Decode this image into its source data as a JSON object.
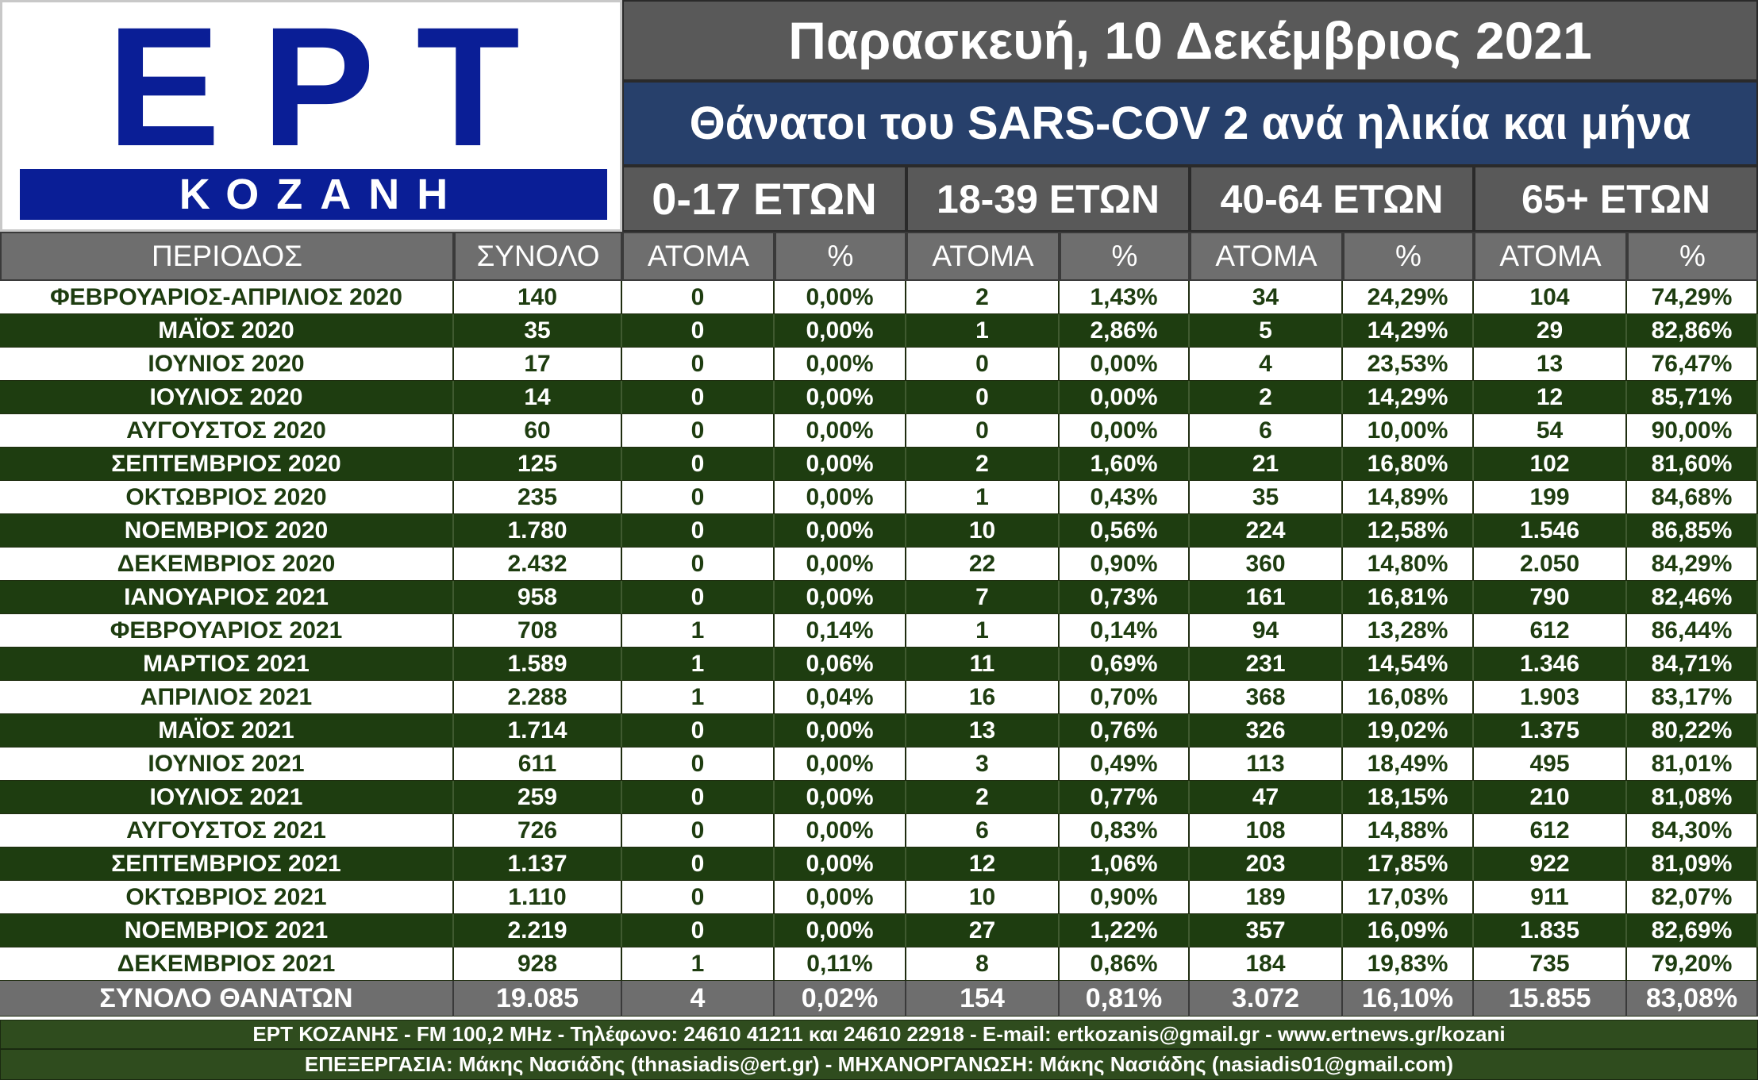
{
  "logo": {
    "top_text": "EPT",
    "bar_text": "ΚΟΖΑΝΗ"
  },
  "header": {
    "date": "Παρασκευή, 10 Δεκέμβριος 2021",
    "subtitle": "Θάνατοι του SARS-COV 2 ανά ηλικία και μήνα"
  },
  "age_groups": [
    "0-17 ΕΤΩΝ",
    "18-39 ΕΤΩΝ",
    "40-64 ΕΤΩΝ",
    "65+  ΕΤΩΝ"
  ],
  "columns": [
    "ΠΕΡΙΟΔΟΣ",
    "ΣΥΝΟΛΟ",
    "ΑΤΟΜΑ",
    "%",
    "ΑΤΟΜΑ",
    "%",
    "ΑΤΟΜΑ",
    "%",
    "ΑΤΟΜΑ",
    "%"
  ],
  "colors": {
    "dark_green": "#1e3d10",
    "grey": "#6e6e6e",
    "navy": "#0a1e96",
    "subtitle_blue": "#27406b"
  },
  "chart_data": {
    "type": "table",
    "title": "Θάνατοι του SARS-COV 2 ανά ηλικία και μήνα",
    "rows": [
      [
        "ΦΕΒΡΟΥΑΡΙΟΣ-ΑΠΡΙΛΙΟΣ 2020",
        "140",
        "0",
        "0,00%",
        "2",
        "1,43%",
        "34",
        "24,29%",
        "104",
        "74,29%"
      ],
      [
        "ΜΑΪΟΣ 2020",
        "35",
        "0",
        "0,00%",
        "1",
        "2,86%",
        "5",
        "14,29%",
        "29",
        "82,86%"
      ],
      [
        "ΙΟΥΝΙΟΣ 2020",
        "17",
        "0",
        "0,00%",
        "0",
        "0,00%",
        "4",
        "23,53%",
        "13",
        "76,47%"
      ],
      [
        "ΙΟΥΛΙΟΣ 2020",
        "14",
        "0",
        "0,00%",
        "0",
        "0,00%",
        "2",
        "14,29%",
        "12",
        "85,71%"
      ],
      [
        "ΑΥΓΟΥΣΤΟΣ 2020",
        "60",
        "0",
        "0,00%",
        "0",
        "0,00%",
        "6",
        "10,00%",
        "54",
        "90,00%"
      ],
      [
        "ΣΕΠΤΕΜΒΡΙΟΣ 2020",
        "125",
        "0",
        "0,00%",
        "2",
        "1,60%",
        "21",
        "16,80%",
        "102",
        "81,60%"
      ],
      [
        "ΟΚΤΩΒΡΙΟΣ 2020",
        "235",
        "0",
        "0,00%",
        "1",
        "0,43%",
        "35",
        "14,89%",
        "199",
        "84,68%"
      ],
      [
        "ΝΟΕΜΒΡΙΟΣ 2020",
        "1.780",
        "0",
        "0,00%",
        "10",
        "0,56%",
        "224",
        "12,58%",
        "1.546",
        "86,85%"
      ],
      [
        "ΔΕΚΕΜΒΡΙΟΣ 2020",
        "2.432",
        "0",
        "0,00%",
        "22",
        "0,90%",
        "360",
        "14,80%",
        "2.050",
        "84,29%"
      ],
      [
        "ΙΑΝΟΥΑΡΙΟΣ 2021",
        "958",
        "0",
        "0,00%",
        "7",
        "0,73%",
        "161",
        "16,81%",
        "790",
        "82,46%"
      ],
      [
        "ΦΕΒΡΟΥΑΡΙΟΣ 2021",
        "708",
        "1",
        "0,14%",
        "1",
        "0,14%",
        "94",
        "13,28%",
        "612",
        "86,44%"
      ],
      [
        "ΜΑΡΤΙΟΣ 2021",
        "1.589",
        "1",
        "0,06%",
        "11",
        "0,69%",
        "231",
        "14,54%",
        "1.346",
        "84,71%"
      ],
      [
        "ΑΠΡΙΛΙΟΣ 2021",
        "2.288",
        "1",
        "0,04%",
        "16",
        "0,70%",
        "368",
        "16,08%",
        "1.903",
        "83,17%"
      ],
      [
        "ΜΑΪΟΣ 2021",
        "1.714",
        "0",
        "0,00%",
        "13",
        "0,76%",
        "326",
        "19,02%",
        "1.375",
        "80,22%"
      ],
      [
        "ΙΟΥΝΙΟΣ 2021",
        "611",
        "0",
        "0,00%",
        "3",
        "0,49%",
        "113",
        "18,49%",
        "495",
        "81,01%"
      ],
      [
        "ΙΟΥΛΙΟΣ 2021",
        "259",
        "0",
        "0,00%",
        "2",
        "0,77%",
        "47",
        "18,15%",
        "210",
        "81,08%"
      ],
      [
        "ΑΥΓΟΥΣΤΟΣ 2021",
        "726",
        "0",
        "0,00%",
        "6",
        "0,83%",
        "108",
        "14,88%",
        "612",
        "84,30%"
      ],
      [
        "ΣΕΠΤΕΜΒΡΙΟΣ 2021",
        "1.137",
        "0",
        "0,00%",
        "12",
        "1,06%",
        "203",
        "17,85%",
        "922",
        "81,09%"
      ],
      [
        "ΟΚΤΩΒΡΙΟΣ 2021",
        "1.110",
        "0",
        "0,00%",
        "10",
        "0,90%",
        "189",
        "17,03%",
        "911",
        "82,07%"
      ],
      [
        "ΝΟΕΜΒΡΙΟΣ 2021",
        "2.219",
        "0",
        "0,00%",
        "27",
        "1,22%",
        "357",
        "16,09%",
        "1.835",
        "82,69%"
      ],
      [
        "ΔΕΚΕΜΒΡΙΟΣ 2021",
        "928",
        "1",
        "0,11%",
        "8",
        "0,86%",
        "184",
        "19,83%",
        "735",
        "79,20%"
      ]
    ],
    "total_row": [
      "ΣΥΝΟΛΟ ΘΑΝΑΤΩΝ",
      "19.085",
      "4",
      "0,02%",
      "154",
      "0,81%",
      "3.072",
      "16,10%",
      "15.855",
      "83,08%"
    ]
  },
  "footer": {
    "line1": "ΕΡΤ ΚΟΖΑΝΗΣ - FM 100,2 MHz - Τηλέφωνο:  24610 41211 και 24610 22918 - E-mail: ertkozanis@gmail.gr - www.ertnews.gr/kozani",
    "line2": "ΕΠΕΞΕΡΓΑΣΙΑ: Μάκης Νασιάδης (thnasiadis@ert.gr) - ΜΗΧΑΝΟΡΓΑΝΩΣΗ: Μάκης Νασιάδης (nasiadis01@gmail.com)"
  }
}
